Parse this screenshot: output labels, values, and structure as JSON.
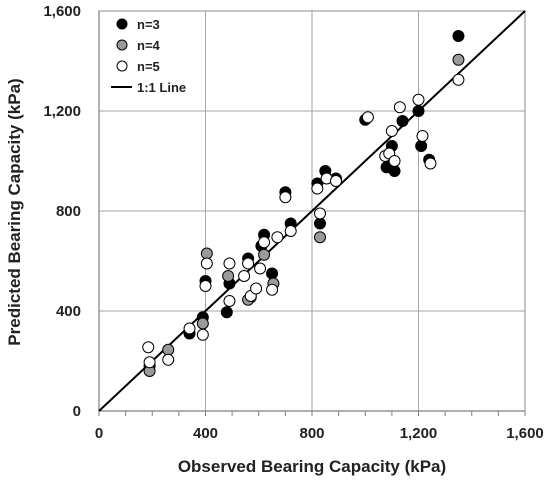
{
  "chart_data": {
    "type": "scatter",
    "xlabel": "Observed Bearing Capacity (kPa)",
    "ylabel": "Predicted Bearing Capacity (kPa)",
    "xlim": [
      0,
      1600
    ],
    "ylim": [
      0,
      1600
    ],
    "xticks": [
      0,
      400,
      800,
      1200,
      1600
    ],
    "yticks": [
      0,
      400,
      800,
      1200,
      1600
    ],
    "xtick_labels": [
      "0",
      "400",
      "800",
      "1,200",
      "1,600"
    ],
    "ytick_labels": [
      "0",
      "400",
      "800",
      "1,200",
      "1,600"
    ],
    "grid": "major",
    "legend_position": "top-left",
    "reference_line": {
      "name": "1:1 Line",
      "from": [
        0,
        0
      ],
      "to": [
        1600,
        1600
      ],
      "color": "#000000"
    },
    "series": [
      {
        "name": "n=3",
        "color": "#000000",
        "edge": "#000000",
        "points": [
          [
            190,
            180
          ],
          [
            340,
            310
          ],
          [
            390,
            375
          ],
          [
            400,
            520
          ],
          [
            480,
            395
          ],
          [
            490,
            510
          ],
          [
            560,
            610
          ],
          [
            570,
            455
          ],
          [
            610,
            660
          ],
          [
            620,
            705
          ],
          [
            650,
            550
          ],
          [
            700,
            875
          ],
          [
            720,
            750
          ],
          [
            820,
            910
          ],
          [
            830,
            750
          ],
          [
            850,
            960
          ],
          [
            890,
            930
          ],
          [
            1000,
            1165
          ],
          [
            1080,
            975
          ],
          [
            1090,
            1010
          ],
          [
            1100,
            1060
          ],
          [
            1110,
            960
          ],
          [
            1140,
            1160
          ],
          [
            1200,
            1200
          ],
          [
            1210,
            1060
          ],
          [
            1240,
            1005
          ],
          [
            1350,
            1500
          ]
        ]
      },
      {
        "name": "n=4",
        "color": "#9a9a9a",
        "edge": "#000000",
        "points": [
          [
            190,
            160
          ],
          [
            260,
            245
          ],
          [
            390,
            350
          ],
          [
            405,
            630
          ],
          [
            485,
            540
          ],
          [
            560,
            445
          ],
          [
            620,
            625
          ],
          [
            655,
            510
          ],
          [
            830,
            695
          ],
          [
            1350,
            1405
          ]
        ]
      },
      {
        "name": "n=5",
        "color": "#ffffff",
        "edge": "#000000",
        "points": [
          [
            185,
            255
          ],
          [
            190,
            195
          ],
          [
            260,
            205
          ],
          [
            340,
            330
          ],
          [
            390,
            305
          ],
          [
            400,
            500
          ],
          [
            405,
            590
          ],
          [
            490,
            590
          ],
          [
            490,
            440
          ],
          [
            545,
            540
          ],
          [
            560,
            590
          ],
          [
            570,
            460
          ],
          [
            590,
            490
          ],
          [
            605,
            570
          ],
          [
            620,
            675
          ],
          [
            650,
            485
          ],
          [
            670,
            695
          ],
          [
            700,
            855
          ],
          [
            720,
            720
          ],
          [
            820,
            890
          ],
          [
            830,
            790
          ],
          [
            855,
            930
          ],
          [
            890,
            920
          ],
          [
            1010,
            1175
          ],
          [
            1075,
            1020
          ],
          [
            1090,
            1030
          ],
          [
            1100,
            1120
          ],
          [
            1110,
            1000
          ],
          [
            1130,
            1215
          ],
          [
            1200,
            1245
          ],
          [
            1215,
            1100
          ],
          [
            1245,
            990
          ],
          [
            1350,
            1325
          ]
        ]
      }
    ]
  }
}
